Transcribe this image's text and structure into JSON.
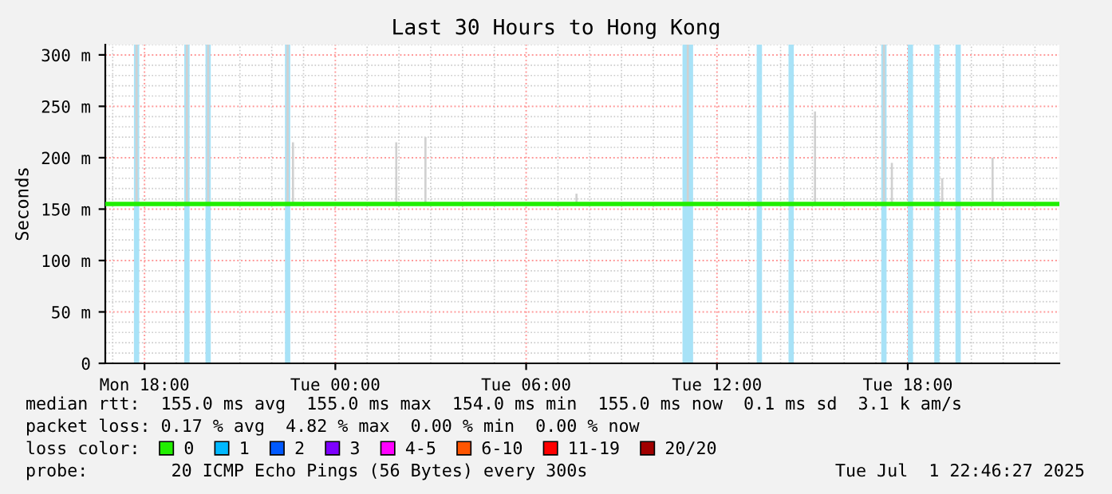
{
  "chart_data": {
    "type": "line",
    "title": "Last 30 Hours to Hong Kong",
    "ylabel": "Seconds",
    "legend_title": "loss color:",
    "legend": "bottom",
    "grid": true,
    "xlim": [
      "2025-06-30T16:46",
      "2025-07-01T22:46"
    ],
    "xticks": [
      {
        "value": "2025-06-30T18:00",
        "label": "Mon 18:00"
      },
      {
        "value": "2025-07-01T00:00",
        "label": "Tue 00:00"
      },
      {
        "value": "2025-07-01T06:00",
        "label": "Tue 06:00"
      },
      {
        "value": "2025-07-01T12:00",
        "label": "Tue 12:00"
      },
      {
        "value": "2025-07-01T18:00",
        "label": "Tue 18:00"
      }
    ],
    "ylim": [
      0,
      310
    ],
    "yticks": [
      0,
      {
        "value": 50,
        "label": "50 m"
      },
      {
        "value": 100,
        "label": "100 m"
      },
      {
        "value": 150,
        "label": "150 m"
      },
      {
        "value": 200,
        "label": "200 m"
      },
      {
        "value": 250,
        "label": "250 m"
      },
      {
        "value": 300,
        "label": "300 m"
      }
    ],
    "series": [
      {
        "type": "bar",
        "color": "#d0d0d0",
        "x": [
          "2025-06-30T17:45",
          "2025-06-30T19:20",
          "2025-06-30T20:00",
          "2025-06-30T22:30",
          "2025-06-30T22:40",
          "2025-07-01T01:55",
          "2025-07-01T02:50",
          "2025-07-01T07:35",
          "2025-07-01T11:05",
          "2025-07-01T15:05",
          "2025-07-01T17:15",
          "2025-07-01T17:30",
          "2025-07-01T19:05",
          "2025-07-01T20:40"
        ],
        "base": [
          155,
          155,
          155,
          155,
          155,
          155,
          155,
          155,
          155,
          155,
          155,
          155,
          155,
          155
        ],
        "values": [
          155,
          155,
          155,
          155,
          60,
          60,
          65,
          10,
          155,
          90,
          155,
          40,
          25,
          45
        ]
      },
      {
        "name": "0",
        "color": "#22ee00",
        "x": [
          "2025-06-30T16:46",
          "2025-06-30T20:00",
          "2025-07-01T00:00",
          "2025-07-01T04:00",
          "2025-07-01T08:00",
          "2025-07-01T12:00",
          "2025-07-01T16:00",
          "2025-07-01T20:00",
          "2025-07-01T22:46"
        ],
        "values": [
          155,
          155,
          155,
          155,
          155,
          155,
          155,
          155,
          155
        ]
      },
      {
        "name": "1",
        "color": "#00b8ff"
      },
      {
        "name": "2",
        "color": "#0059ff"
      },
      {
        "name": "3",
        "color": "#7e00ff"
      },
      {
        "name": "4-5",
        "color": "#ff00ff"
      },
      {
        "name": "6-10",
        "color": "#ff5500"
      },
      {
        "name": "11-19",
        "color": "#ff0000"
      },
      {
        "name": "20/20",
        "color": "#a10000"
      }
    ],
    "bands": [
      {
        "axis": "x",
        "from": "2025-06-30T17:40",
        "to": "2025-06-30T17:50",
        "color": "#a8e2f7"
      },
      {
        "axis": "x",
        "from": "2025-06-30T19:15",
        "to": "2025-06-30T19:25",
        "color": "#a8e2f7"
      },
      {
        "axis": "x",
        "from": "2025-06-30T19:55",
        "to": "2025-06-30T20:05",
        "color": "#a8e2f7"
      },
      {
        "axis": "x",
        "from": "2025-06-30T22:25",
        "to": "2025-06-30T22:35",
        "color": "#a8e2f7"
      },
      {
        "axis": "x",
        "from": "2025-07-01T10:55",
        "to": "2025-07-01T11:15",
        "color": "#a8e2f7"
      },
      {
        "axis": "x",
        "from": "2025-07-01T13:15",
        "to": "2025-07-01T13:25",
        "color": "#a8e2f7"
      },
      {
        "axis": "x",
        "from": "2025-07-01T14:15",
        "to": "2025-07-01T14:25",
        "color": "#a8e2f7"
      },
      {
        "axis": "x",
        "from": "2025-07-01T17:10",
        "to": "2025-07-01T17:20",
        "color": "#a8e2f7"
      },
      {
        "axis": "x",
        "from": "2025-07-01T18:00",
        "to": "2025-07-01T18:10",
        "color": "#a8e2f7"
      },
      {
        "axis": "x",
        "from": "2025-07-01T18:50",
        "to": "2025-07-01T19:00",
        "color": "#a8e2f7"
      },
      {
        "axis": "x",
        "from": "2025-07-01T19:30",
        "to": "2025-07-01T19:40",
        "color": "#a8e2f7"
      }
    ],
    "annotations": [
      "median rtt:  155.0 ms avg  155.0 ms max  154.0 ms min  155.0 ms now  0.1 ms sd  3.1 k am/s",
      "packet loss: 0.17 % avg  4.82 % max  0.00 % min  0.00 % now",
      "probe:        20 ICMP Echo Pings (56 Bytes) every 300s",
      "Tue Jul  1 22:46:27 2025"
    ]
  }
}
